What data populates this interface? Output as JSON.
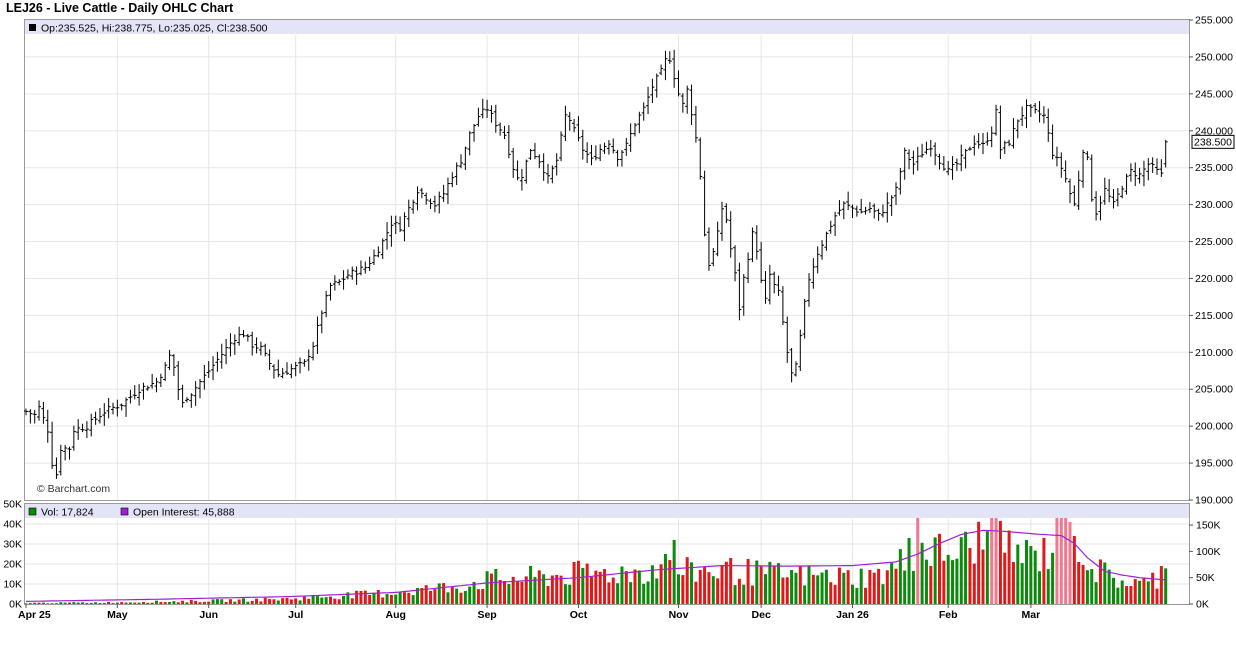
{
  "title": "LEJ26 - Live Cattle - Daily OHLC Chart",
  "watermark": "© Barchart.com",
  "price_legend": "Op:235.525, Hi:238.775, Lo:235.025, Cl:238.500",
  "volume_legend": {
    "vol_label": "Vol: 17,824",
    "oi_label": "Open Interest: 45,888"
  },
  "colors": {
    "volume_up": "#0b8a0b",
    "volume_down": "#e01818",
    "volume_spike": "#f07890",
    "open_interest_line": "#9d22d4",
    "legend_band": "#e3e5f6",
    "bars": "#000000"
  },
  "chart_data": [
    {
      "type": "ohlc",
      "series_name": "LEJ26",
      "x_tick_labels": [
        "Apr 25",
        "May",
        "Jun",
        "Jul",
        "Aug",
        "Sep",
        "Oct",
        "Nov",
        "Dec",
        "Jan 26",
        "Feb",
        "Mar"
      ],
      "x_tick_positions": [
        0,
        21,
        42,
        62,
        85,
        106,
        127,
        150,
        169,
        190,
        212,
        231
      ],
      "ylim": [
        190,
        255
      ],
      "y_ticks": [
        "190.000",
        "195.000",
        "200.000",
        "205.000",
        "210.000",
        "215.000",
        "220.000",
        "225.000",
        "230.000",
        "235.000",
        "240.000",
        "245.000",
        "250.000",
        "255.000"
      ],
      "last_price_label": "238.500",
      "last_price": 238.5,
      "last_bar": {
        "open": 235.525,
        "high": 238.775,
        "low": 235.025,
        "close": 238.5
      },
      "close_anchors": [
        [
          0,
          202
        ],
        [
          2,
          201.5
        ],
        [
          3,
          202.5
        ],
        [
          5,
          199.5
        ],
        [
          6,
          195
        ],
        [
          7,
          193.5
        ],
        [
          8,
          197
        ],
        [
          10,
          197
        ],
        [
          11,
          199.5
        ],
        [
          14,
          200
        ],
        [
          18,
          202
        ],
        [
          22,
          203
        ],
        [
          26,
          205
        ],
        [
          30,
          206
        ],
        [
          32,
          208
        ],
        [
          33,
          209.5
        ],
        [
          34,
          208
        ],
        [
          35,
          205
        ],
        [
          36,
          203
        ],
        [
          37,
          204
        ],
        [
          38,
          204.5
        ],
        [
          40,
          206
        ],
        [
          44,
          209
        ],
        [
          46,
          210.5
        ],
        [
          48,
          212
        ],
        [
          50,
          212.5
        ],
        [
          52,
          211
        ],
        [
          54,
          210.5
        ],
        [
          56,
          208.5
        ],
        [
          58,
          207
        ],
        [
          60,
          207.5
        ],
        [
          62,
          208
        ],
        [
          64,
          208.5
        ],
        [
          66,
          211
        ],
        [
          68,
          215.5
        ],
        [
          70,
          219
        ],
        [
          72,
          219.5
        ],
        [
          74,
          220.5
        ],
        [
          76,
          221
        ],
        [
          78,
          221.5
        ],
        [
          80,
          223
        ],
        [
          82,
          225
        ],
        [
          84,
          227.5
        ],
        [
          86,
          227
        ],
        [
          88,
          229.5
        ],
        [
          90,
          232
        ],
        [
          92,
          231
        ],
        [
          94,
          230
        ],
        [
          96,
          231.5
        ],
        [
          98,
          234
        ],
        [
          100,
          236
        ],
        [
          102,
          239.5
        ],
        [
          104,
          242
        ],
        [
          106,
          243
        ],
        [
          108,
          241
        ],
        [
          110,
          239.5
        ],
        [
          112,
          235
        ],
        [
          113,
          233.5
        ],
        [
          114,
          234
        ],
        [
          116,
          237.5
        ],
        [
          118,
          236
        ],
        [
          120,
          233.5
        ],
        [
          122,
          236
        ],
        [
          124,
          242
        ],
        [
          125,
          241.5
        ],
        [
          126,
          240
        ],
        [
          128,
          237.5
        ],
        [
          130,
          236
        ],
        [
          132,
          237.5
        ],
        [
          134,
          238.5
        ],
        [
          136,
          236.5
        ],
        [
          138,
          238
        ],
        [
          140,
          241
        ],
        [
          142,
          243
        ],
        [
          144,
          246
        ],
        [
          146,
          248
        ],
        [
          147,
          249.5
        ],
        [
          148,
          249.8
        ],
        [
          150,
          245
        ],
        [
          151,
          243.5
        ],
        [
          152,
          245.5
        ],
        [
          153,
          242.5
        ],
        [
          154,
          239
        ],
        [
          155,
          234
        ],
        [
          156,
          226
        ],
        [
          157,
          222
        ],
        [
          158,
          223.5
        ],
        [
          159,
          226
        ],
        [
          160,
          229.5
        ],
        [
          161,
          228
        ],
        [
          162,
          224
        ],
        [
          163,
          220.5
        ],
        [
          164,
          216
        ],
        [
          165,
          220
        ],
        [
          166,
          223
        ],
        [
          167,
          226
        ],
        [
          168,
          224
        ],
        [
          169,
          219.5
        ],
        [
          170,
          217
        ],
        [
          171,
          220.5
        ],
        [
          172,
          219
        ],
        [
          173,
          218
        ],
        [
          174,
          214
        ],
        [
          175,
          210
        ],
        [
          176,
          207
        ],
        [
          177,
          208
        ],
        [
          178,
          212
        ],
        [
          179,
          216.5
        ],
        [
          180,
          220
        ],
        [
          182,
          223.5
        ],
        [
          184,
          226
        ],
        [
          186,
          228.5
        ],
        [
          188,
          230
        ],
        [
          190,
          229.5
        ],
        [
          192,
          229
        ],
        [
          194,
          229.5
        ],
        [
          196,
          228.5
        ],
        [
          198,
          230
        ],
        [
          200,
          232
        ],
        [
          202,
          237
        ],
        [
          204,
          235.5
        ],
        [
          206,
          237
        ],
        [
          208,
          238
        ],
        [
          210,
          236
        ],
        [
          212,
          234.5
        ],
        [
          214,
          235.5
        ],
        [
          216,
          237
        ],
        [
          218,
          238.5
        ],
        [
          220,
          238
        ],
        [
          222,
          240
        ],
        [
          223,
          242.5
        ],
        [
          224,
          237.5
        ],
        [
          226,
          238.5
        ],
        [
          228,
          241.5
        ],
        [
          230,
          243
        ],
        [
          232,
          242.5
        ],
        [
          234,
          242
        ],
        [
          236,
          237
        ],
        [
          238,
          235
        ],
        [
          239,
          233.5
        ],
        [
          240,
          231.5
        ],
        [
          241,
          230
        ],
        [
          242,
          233.5
        ],
        [
          243,
          237.5
        ],
        [
          244,
          236
        ],
        [
          245,
          231
        ],
        [
          246,
          229
        ],
        [
          247,
          230.5
        ],
        [
          248,
          232
        ],
        [
          249,
          231
        ],
        [
          250,
          230
        ],
        [
          252,
          232.5
        ],
        [
          254,
          234.5
        ],
        [
          256,
          234
        ],
        [
          258,
          235.5
        ],
        [
          260,
          234.5
        ],
        [
          261,
          234
        ],
        [
          262,
          238.5
        ]
      ]
    },
    {
      "type": "bar+line",
      "series": [
        {
          "name": "Vol",
          "last_value": 17824
        },
        {
          "name": "Open Interest",
          "last_value": 45888
        }
      ],
      "volume_ticks": [
        "0K",
        "10K",
        "20K",
        "30K",
        "40K",
        "50K"
      ],
      "volume_ylim": [
        0,
        50000
      ],
      "open_interest_ticks": [
        "0K",
        "50K",
        "100K",
        "150K"
      ],
      "open_interest_ylim": [
        0,
        190000
      ],
      "volume_anchors": [
        [
          0,
          500
        ],
        [
          20,
          800
        ],
        [
          40,
          1500
        ],
        [
          60,
          2500
        ],
        [
          70,
          4000
        ],
        [
          80,
          5000
        ],
        [
          90,
          7000
        ],
        [
          100,
          9000
        ],
        [
          106,
          12000
        ],
        [
          115,
          13000
        ],
        [
          127,
          15000
        ],
        [
          140,
          16000
        ],
        [
          145,
          18000
        ],
        [
          150,
          16000
        ],
        [
          160,
          17000
        ],
        [
          170,
          15000
        ],
        [
          180,
          14000
        ],
        [
          190,
          13500
        ],
        [
          196,
          14000
        ],
        [
          200,
          18000
        ],
        [
          203,
          24000
        ],
        [
          205,
          33000
        ],
        [
          208,
          26000
        ],
        [
          212,
          25000
        ],
        [
          216,
          27000
        ],
        [
          218,
          32000
        ],
        [
          222,
          30000
        ],
        [
          225,
          28000
        ],
        [
          230,
          24000
        ],
        [
          234,
          25000
        ],
        [
          236,
          29000
        ],
        [
          238,
          36000
        ],
        [
          240,
          38000
        ],
        [
          242,
          30000
        ],
        [
          244,
          22000
        ],
        [
          246,
          17000
        ],
        [
          250,
          13000
        ],
        [
          253,
          11000
        ],
        [
          258,
          10000
        ],
        [
          262,
          18000
        ]
      ],
      "volume_spikes": [
        [
          128,
          18000
        ],
        [
          147,
          25000
        ],
        [
          149,
          32000
        ],
        [
          155,
          17000
        ],
        [
          203,
          33000
        ],
        [
          205,
          45000
        ],
        [
          217,
          28000
        ],
        [
          222,
          46000
        ],
        [
          223,
          43000
        ],
        [
          237,
          45000
        ],
        [
          238,
          44000
        ],
        [
          239,
          43000
        ],
        [
          240,
          41000
        ],
        [
          241,
          34000
        ]
      ],
      "open_interest_anchors": [
        [
          0,
          5000
        ],
        [
          30,
          9000
        ],
        [
          60,
          14000
        ],
        [
          85,
          22000
        ],
        [
          106,
          40000
        ],
        [
          127,
          50000
        ],
        [
          145,
          65000
        ],
        [
          160,
          73000
        ],
        [
          175,
          72000
        ],
        [
          190,
          73000
        ],
        [
          200,
          80000
        ],
        [
          205,
          95000
        ],
        [
          210,
          115000
        ],
        [
          215,
          132000
        ],
        [
          220,
          140000
        ],
        [
          225,
          138000
        ],
        [
          232,
          133000
        ],
        [
          238,
          130000
        ],
        [
          241,
          115000
        ],
        [
          244,
          88000
        ],
        [
          248,
          62000
        ],
        [
          252,
          55000
        ],
        [
          256,
          50000
        ],
        [
          262,
          45888
        ]
      ]
    }
  ]
}
